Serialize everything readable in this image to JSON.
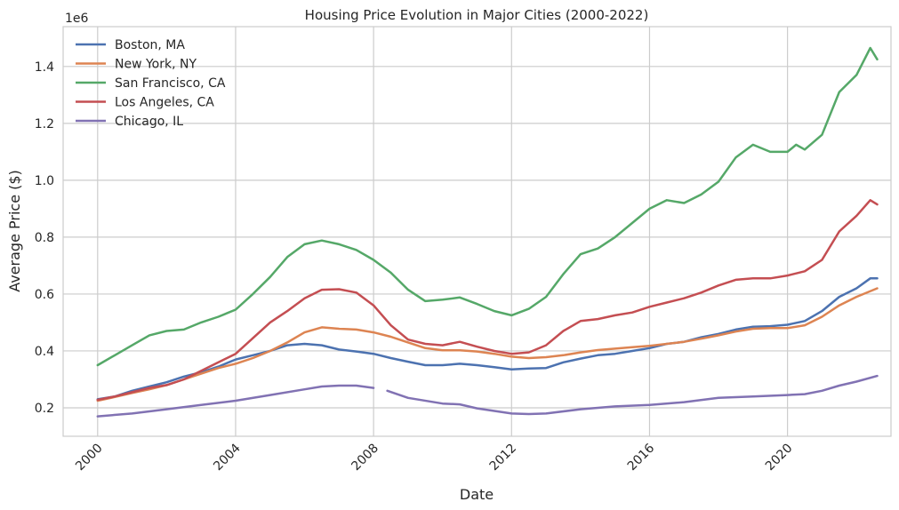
{
  "chart_data": {
    "type": "line",
    "title": "Housing Price Evolution in Major Cities (2000-2022)",
    "xlabel": "Date",
    "ylabel": "Average Price ($)",
    "y_offset_label": "1e6",
    "y_scale_factor": 1000000,
    "xlim": [
      1999.0,
      2023.0
    ],
    "ylim": [
      100000,
      1540000
    ],
    "x_ticks": [
      2000,
      2004,
      2008,
      2012,
      2016,
      2020
    ],
    "x_tick_labels": [
      "2000",
      "2004",
      "2008",
      "2012",
      "2016",
      "2020"
    ],
    "y_ticks": [
      200000,
      400000,
      600000,
      800000,
      1000000,
      1200000,
      1400000
    ],
    "y_tick_labels": [
      "0.2",
      "0.4",
      "0.6",
      "0.8",
      "1.0",
      "1.2",
      "1.4"
    ],
    "grid": true,
    "legend_position": "top-left",
    "series": [
      {
        "name": "Boston, MA",
        "color": "#4c72b0",
        "points": [
          [
            2000.0,
            230000
          ],
          [
            2000.5,
            240000
          ],
          [
            2001.0,
            260000
          ],
          [
            2001.5,
            275000
          ],
          [
            2002.0,
            290000
          ],
          [
            2002.5,
            310000
          ],
          [
            2003.0,
            325000
          ],
          [
            2003.5,
            345000
          ],
          [
            2004.0,
            370000
          ],
          [
            2004.5,
            385000
          ],
          [
            2005.0,
            400000
          ],
          [
            2005.5,
            420000
          ],
          [
            2006.0,
            425000
          ],
          [
            2006.5,
            420000
          ],
          [
            2007.0,
            405000
          ],
          [
            2007.5,
            398000
          ],
          [
            2008.0,
            390000
          ],
          [
            2008.5,
            375000
          ],
          [
            2009.0,
            362000
          ],
          [
            2009.5,
            350000
          ],
          [
            2010.0,
            350000
          ],
          [
            2010.5,
            355000
          ],
          [
            2011.0,
            350000
          ],
          [
            2011.5,
            343000
          ],
          [
            2012.0,
            335000
          ],
          [
            2012.5,
            338000
          ],
          [
            2013.0,
            340000
          ],
          [
            2013.5,
            360000
          ],
          [
            2014.0,
            373000
          ],
          [
            2014.5,
            385000
          ],
          [
            2015.0,
            390000
          ],
          [
            2015.5,
            400000
          ],
          [
            2016.0,
            410000
          ],
          [
            2016.5,
            425000
          ],
          [
            2017.0,
            432000
          ],
          [
            2017.5,
            448000
          ],
          [
            2018.0,
            460000
          ],
          [
            2018.5,
            475000
          ],
          [
            2019.0,
            485000
          ],
          [
            2019.5,
            487000
          ],
          [
            2020.0,
            492000
          ],
          [
            2020.5,
            505000
          ],
          [
            2021.0,
            540000
          ],
          [
            2021.5,
            590000
          ],
          [
            2022.0,
            620000
          ],
          [
            2022.4,
            655000
          ],
          [
            2022.6,
            655000
          ]
        ]
      },
      {
        "name": "New York, NY",
        "color": "#dd8452",
        "points": [
          [
            2000.0,
            225000
          ],
          [
            2000.5,
            238000
          ],
          [
            2001.0,
            252000
          ],
          [
            2001.5,
            265000
          ],
          [
            2002.0,
            280000
          ],
          [
            2002.5,
            300000
          ],
          [
            2003.0,
            320000
          ],
          [
            2003.5,
            340000
          ],
          [
            2004.0,
            355000
          ],
          [
            2004.5,
            375000
          ],
          [
            2005.0,
            400000
          ],
          [
            2005.5,
            430000
          ],
          [
            2006.0,
            465000
          ],
          [
            2006.5,
            483000
          ],
          [
            2007.0,
            478000
          ],
          [
            2007.5,
            475000
          ],
          [
            2008.0,
            465000
          ],
          [
            2008.5,
            450000
          ],
          [
            2009.0,
            430000
          ],
          [
            2009.5,
            410000
          ],
          [
            2010.0,
            402000
          ],
          [
            2010.5,
            402000
          ],
          [
            2011.0,
            398000
          ],
          [
            2011.5,
            390000
          ],
          [
            2012.0,
            380000
          ],
          [
            2012.5,
            375000
          ],
          [
            2013.0,
            378000
          ],
          [
            2013.5,
            385000
          ],
          [
            2014.0,
            395000
          ],
          [
            2014.5,
            403000
          ],
          [
            2015.0,
            408000
          ],
          [
            2015.5,
            413000
          ],
          [
            2016.0,
            418000
          ],
          [
            2016.5,
            425000
          ],
          [
            2017.0,
            432000
          ],
          [
            2017.5,
            443000
          ],
          [
            2018.0,
            455000
          ],
          [
            2018.5,
            468000
          ],
          [
            2019.0,
            478000
          ],
          [
            2019.5,
            480000
          ],
          [
            2020.0,
            480000
          ],
          [
            2020.5,
            490000
          ],
          [
            2021.0,
            520000
          ],
          [
            2021.5,
            560000
          ],
          [
            2022.0,
            590000
          ],
          [
            2022.6,
            620000
          ]
        ]
      },
      {
        "name": "San Francisco, CA",
        "color": "#55a868",
        "points": [
          [
            2000.0,
            350000
          ],
          [
            2000.5,
            385000
          ],
          [
            2001.0,
            420000
          ],
          [
            2001.5,
            455000
          ],
          [
            2002.0,
            470000
          ],
          [
            2002.5,
            475000
          ],
          [
            2003.0,
            500000
          ],
          [
            2003.5,
            520000
          ],
          [
            2004.0,
            545000
          ],
          [
            2004.5,
            600000
          ],
          [
            2005.0,
            660000
          ],
          [
            2005.5,
            730000
          ],
          [
            2006.0,
            775000
          ],
          [
            2006.5,
            788000
          ],
          [
            2007.0,
            775000
          ],
          [
            2007.5,
            755000
          ],
          [
            2008.0,
            720000
          ],
          [
            2008.5,
            675000
          ],
          [
            2009.0,
            615000
          ],
          [
            2009.5,
            575000
          ],
          [
            2010.0,
            580000
          ],
          [
            2010.5,
            588000
          ],
          [
            2011.0,
            565000
          ],
          [
            2011.5,
            540000
          ],
          [
            2012.0,
            525000
          ],
          [
            2012.5,
            548000
          ],
          [
            2013.0,
            590000
          ],
          [
            2013.5,
            670000
          ],
          [
            2014.0,
            740000
          ],
          [
            2014.5,
            760000
          ],
          [
            2015.0,
            800000
          ],
          [
            2015.5,
            850000
          ],
          [
            2016.0,
            900000
          ],
          [
            2016.5,
            930000
          ],
          [
            2017.0,
            920000
          ],
          [
            2017.5,
            950000
          ],
          [
            2018.0,
            995000
          ],
          [
            2018.5,
            1080000
          ],
          [
            2019.0,
            1125000
          ],
          [
            2019.5,
            1100000
          ],
          [
            2020.0,
            1100000
          ],
          [
            2020.25,
            1125000
          ],
          [
            2020.5,
            1108000
          ],
          [
            2021.0,
            1160000
          ],
          [
            2021.5,
            1310000
          ],
          [
            2022.0,
            1370000
          ],
          [
            2022.4,
            1465000
          ],
          [
            2022.6,
            1425000
          ]
        ]
      },
      {
        "name": "Los Angeles, CA",
        "color": "#c44e52",
        "points": [
          [
            2000.0,
            228000
          ],
          [
            2000.5,
            240000
          ],
          [
            2001.0,
            255000
          ],
          [
            2001.5,
            270000
          ],
          [
            2002.0,
            280000
          ],
          [
            2002.5,
            300000
          ],
          [
            2003.0,
            330000
          ],
          [
            2003.5,
            360000
          ],
          [
            2004.0,
            390000
          ],
          [
            2004.5,
            445000
          ],
          [
            2005.0,
            500000
          ],
          [
            2005.5,
            540000
          ],
          [
            2006.0,
            585000
          ],
          [
            2006.5,
            615000
          ],
          [
            2007.0,
            617000
          ],
          [
            2007.5,
            605000
          ],
          [
            2008.0,
            560000
          ],
          [
            2008.5,
            490000
          ],
          [
            2009.0,
            440000
          ],
          [
            2009.5,
            425000
          ],
          [
            2010.0,
            420000
          ],
          [
            2010.5,
            432000
          ],
          [
            2011.0,
            415000
          ],
          [
            2011.5,
            400000
          ],
          [
            2012.0,
            390000
          ],
          [
            2012.5,
            395000
          ],
          [
            2013.0,
            420000
          ],
          [
            2013.5,
            470000
          ],
          [
            2014.0,
            505000
          ],
          [
            2014.5,
            512000
          ],
          [
            2015.0,
            525000
          ],
          [
            2015.5,
            535000
          ],
          [
            2016.0,
            555000
          ],
          [
            2016.5,
            570000
          ],
          [
            2017.0,
            585000
          ],
          [
            2017.5,
            605000
          ],
          [
            2018.0,
            630000
          ],
          [
            2018.5,
            650000
          ],
          [
            2019.0,
            655000
          ],
          [
            2019.5,
            655000
          ],
          [
            2020.0,
            665000
          ],
          [
            2020.5,
            680000
          ],
          [
            2021.0,
            720000
          ],
          [
            2021.5,
            820000
          ],
          [
            2022.0,
            875000
          ],
          [
            2022.4,
            930000
          ],
          [
            2022.6,
            915000
          ]
        ]
      },
      {
        "name": "Chicago, IL",
        "color": "#8172b3",
        "points": [
          [
            2000.0,
            170000
          ],
          [
            2001.0,
            180000
          ],
          [
            2002.0,
            195000
          ],
          [
            2003.0,
            210000
          ],
          [
            2004.0,
            225000
          ],
          [
            2005.0,
            245000
          ],
          [
            2006.0,
            265000
          ],
          [
            2006.5,
            275000
          ],
          [
            2007.0,
            278000
          ],
          [
            2007.5,
            278000
          ],
          [
            2008.0,
            270000
          ],
          null,
          [
            2008.4,
            260000
          ],
          [
            2009.0,
            235000
          ],
          [
            2010.0,
            215000
          ],
          [
            2010.5,
            212000
          ],
          [
            2011.0,
            198000
          ],
          [
            2012.0,
            180000
          ],
          [
            2012.5,
            178000
          ],
          [
            2013.0,
            180000
          ],
          [
            2014.0,
            195000
          ],
          [
            2015.0,
            205000
          ],
          [
            2016.0,
            210000
          ],
          [
            2017.0,
            220000
          ],
          [
            2018.0,
            235000
          ],
          [
            2019.0,
            240000
          ],
          [
            2020.0,
            245000
          ],
          [
            2020.5,
            248000
          ],
          [
            2021.0,
            260000
          ],
          [
            2021.5,
            278000
          ],
          [
            2022.0,
            292000
          ],
          [
            2022.6,
            312000
          ]
        ]
      }
    ]
  }
}
